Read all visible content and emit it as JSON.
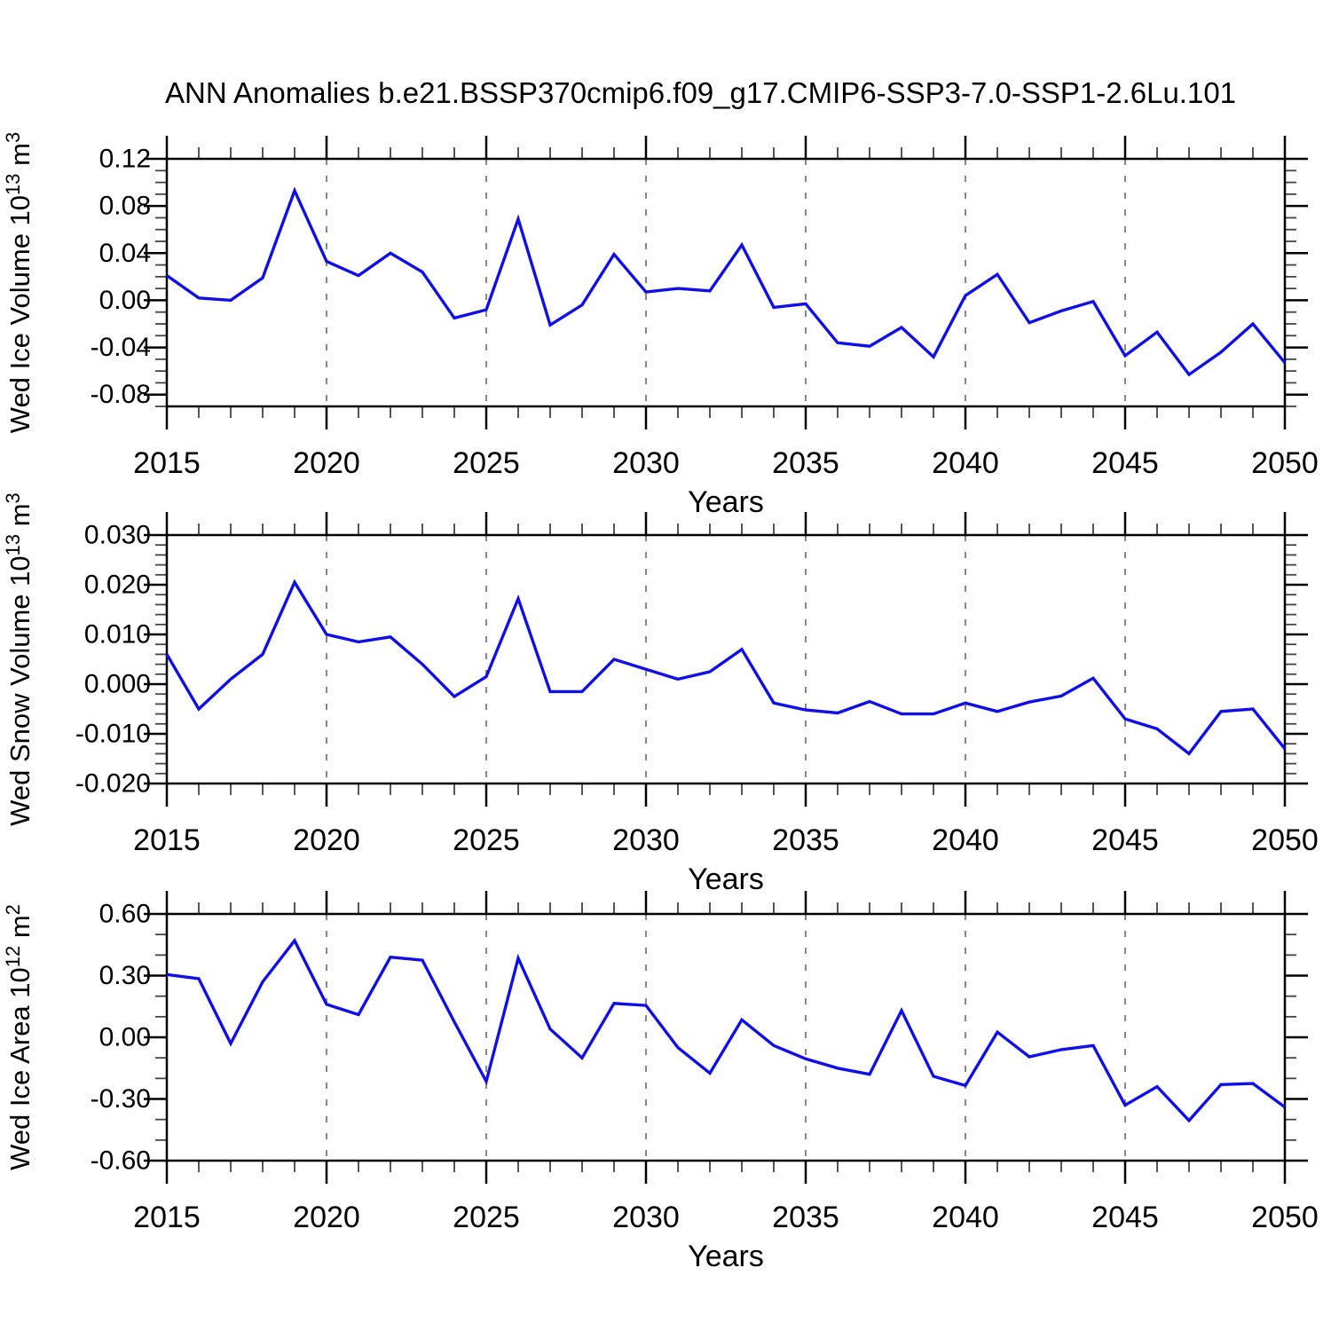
{
  "title": "ANN Anomalies b.e21.BSSP370cmip6.f09_g17.CMIP6-SSP3-7.0-SSP1-2.6Lu.101",
  "xlabel": "Years",
  "line_color": "#0f0fe6",
  "grid_color": "#888888",
  "years": [
    2015,
    2016,
    2017,
    2018,
    2019,
    2020,
    2021,
    2022,
    2023,
    2024,
    2025,
    2026,
    2027,
    2028,
    2029,
    2030,
    2031,
    2032,
    2033,
    2034,
    2035,
    2036,
    2037,
    2038,
    2039,
    2040,
    2041,
    2042,
    2043,
    2044,
    2045,
    2046,
    2047,
    2048,
    2049,
    2050
  ],
  "x_major_tick_labels": [
    "2015",
    "2020",
    "2025",
    "2030",
    "2035",
    "2040",
    "2045",
    "2050"
  ],
  "x_major_ticks": [
    2015,
    2020,
    2025,
    2030,
    2035,
    2040,
    2045,
    2050
  ],
  "x_gridline_years": [
    2020,
    2025,
    2030,
    2035,
    2040,
    2045
  ],
  "chart_data": [
    {
      "type": "line",
      "name": "wed-ice-volume",
      "title": "",
      "ylabel_plain": "Wed Ice Volume 10^13 m^3",
      "ylabel_segments": [
        {
          "t": "Wed Ice Volume 10"
        },
        {
          "t": "13",
          "sup": true
        },
        {
          "t": " m"
        },
        {
          "t": "3",
          "sup": true
        }
      ],
      "xlabel": "Years",
      "ylim": [
        -0.09,
        0.12
      ],
      "ytick_labels": [
        "0.12",
        "0.08",
        "0.04",
        "0.00",
        "-0.04",
        "-0.08"
      ],
      "ytick_values": [
        0.12,
        0.08,
        0.04,
        0.0,
        -0.04,
        -0.08
      ],
      "y_minor_step": 0.01,
      "grid": "vertical-dashed",
      "legend": "none",
      "values": [
        0.021,
        0.002,
        0.0,
        0.019,
        0.093,
        0.033,
        0.021,
        0.04,
        0.024,
        -0.015,
        -0.008,
        0.069,
        -0.021,
        -0.004,
        0.039,
        0.007,
        0.01,
        0.008,
        0.047,
        -0.006,
        -0.003,
        -0.036,
        -0.039,
        -0.023,
        -0.048,
        0.004,
        0.022,
        -0.019,
        -0.009,
        -0.001,
        -0.047,
        -0.027,
        -0.063,
        -0.044,
        -0.02,
        -0.053
      ]
    },
    {
      "type": "line",
      "name": "wed-snow-volume",
      "title": "",
      "ylabel_plain": "Wed Snow Volume 10^13 m^3",
      "ylabel_segments": [
        {
          "t": "Wed Snow Volume 10"
        },
        {
          "t": "13",
          "sup": true
        },
        {
          "t": " m"
        },
        {
          "t": "3",
          "sup": true
        }
      ],
      "xlabel": "Years",
      "ylim": [
        -0.02,
        0.03
      ],
      "ytick_labels": [
        "0.030",
        "0.020",
        "0.010",
        "0.000",
        "-0.010",
        "-0.020"
      ],
      "ytick_values": [
        0.03,
        0.02,
        0.01,
        0.0,
        -0.01,
        -0.02
      ],
      "y_minor_step": 0.002,
      "grid": "vertical-dashed",
      "legend": "none",
      "values": [
        0.006,
        -0.005,
        0.001,
        0.006,
        0.0205,
        0.01,
        0.0085,
        0.0095,
        0.004,
        -0.0025,
        0.0015,
        0.0172,
        -0.0015,
        -0.0015,
        0.005,
        0.003,
        0.001,
        0.0025,
        0.007,
        -0.0038,
        -0.0052,
        -0.0058,
        -0.0035,
        -0.006,
        -0.006,
        -0.0038,
        -0.0055,
        -0.0036,
        -0.0024,
        0.0012,
        -0.007,
        -0.009,
        -0.014,
        -0.0055,
        -0.005,
        -0.013
      ]
    },
    {
      "type": "line",
      "name": "wed-ice-area",
      "title": "",
      "ylabel_plain": "Wed Ice Area 10^12 m^2",
      "ylabel_segments": [
        {
          "t": "Wed Ice Area 10"
        },
        {
          "t": "12",
          "sup": true
        },
        {
          "t": " m"
        },
        {
          "t": "2",
          "sup": true
        }
      ],
      "xlabel": "Years",
      "ylim": [
        -0.6,
        0.6
      ],
      "ytick_labels": [
        "0.60",
        "0.30",
        "0.00",
        "-0.30",
        "-0.60"
      ],
      "ytick_values": [
        0.6,
        0.3,
        0.0,
        -0.3,
        -0.6
      ],
      "y_minor_step": 0.1,
      "grid": "vertical-dashed",
      "legend": "none",
      "values": [
        0.305,
        0.285,
        -0.03,
        0.27,
        0.47,
        0.16,
        0.11,
        0.39,
        0.375,
        0.075,
        -0.215,
        0.385,
        0.04,
        -0.1,
        0.165,
        0.155,
        -0.05,
        -0.175,
        0.085,
        -0.04,
        -0.105,
        -0.15,
        -0.18,
        0.13,
        -0.19,
        -0.235,
        0.025,
        -0.095,
        -0.06,
        -0.04,
        -0.33,
        -0.24,
        -0.405,
        -0.23,
        -0.225,
        -0.34
      ]
    }
  ]
}
